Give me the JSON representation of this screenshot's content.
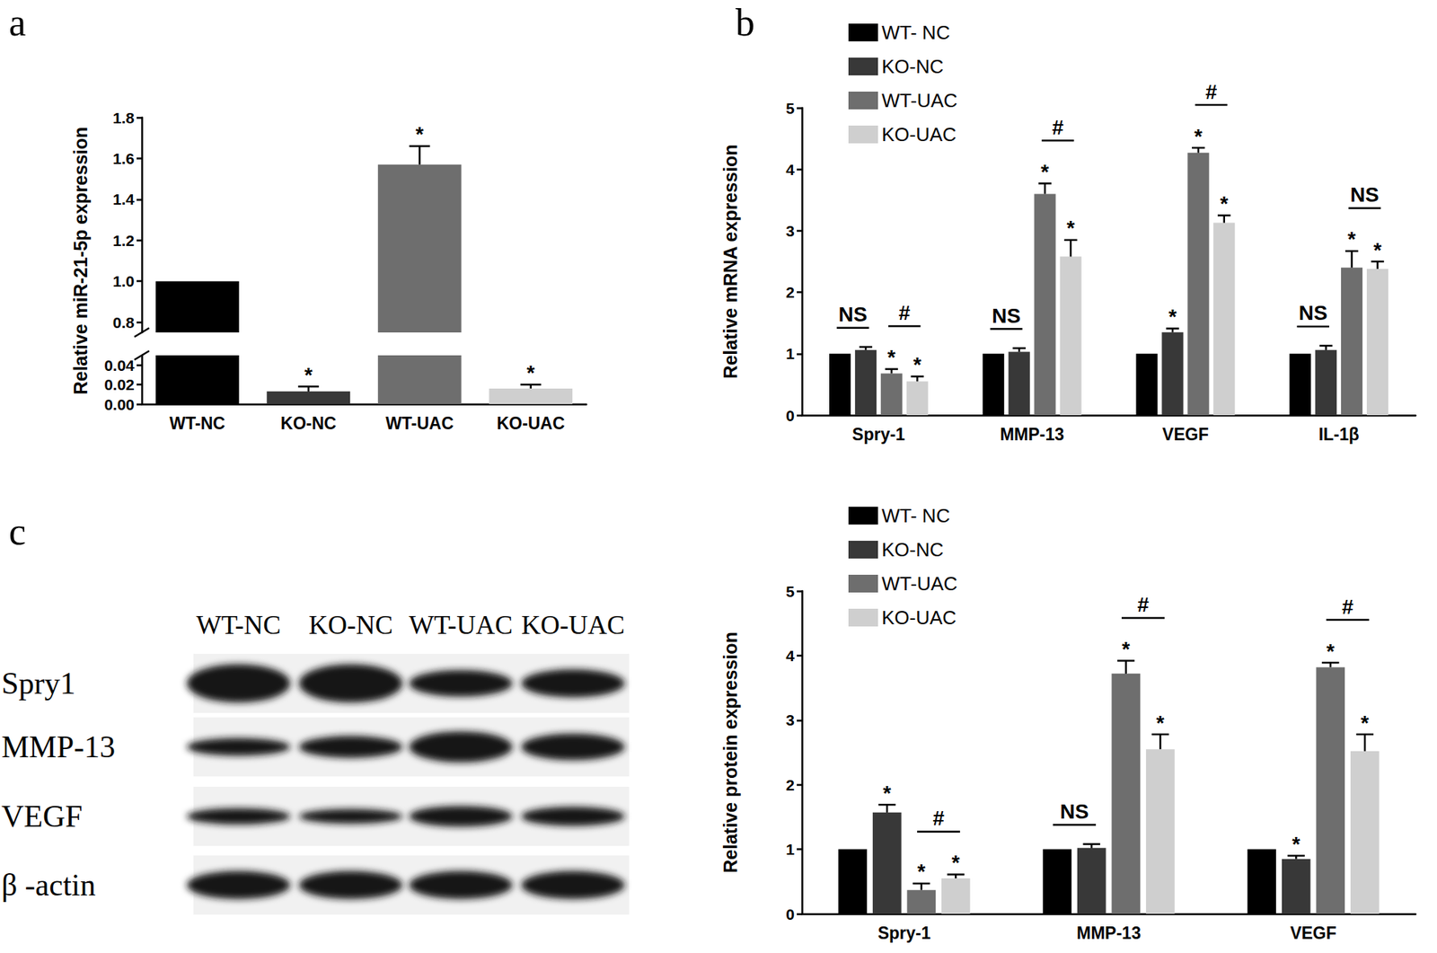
{
  "chart_data": [
    {
      "panel": "a",
      "type": "bar",
      "categories": [
        "WT-NC",
        "KO-NC",
        "WT-UAC",
        "KO-UAC"
      ],
      "values": [
        1,
        0.013,
        1.57,
        0.016
      ],
      "errors": [
        null,
        0.005,
        0.09,
        0.004
      ],
      "significance": [
        null,
        "*",
        "*",
        "*"
      ],
      "colors": [
        "#000000",
        "#383838",
        "#6e6e6e",
        "#cfcfcf"
      ],
      "y_label": "Relative miR-21-5p expression",
      "ylim": [
        0,
        1.8
      ],
      "axis_break": [
        0.05,
        0.75
      ],
      "yticks": [
        {
          "value": 0,
          "label": "0.00"
        },
        0.02,
        0.04,
        0.8,
        {
          "value": 1,
          "label": "1.0"
        },
        1.2,
        1.4,
        1.6,
        1.8
      ],
      "grid": false
    },
    {
      "panel": "b",
      "type": "bar",
      "categories": [
        "Spry-1",
        "MMP-13",
        "VEGF",
        "IL-1β"
      ],
      "y_label": "Relative mRNA expression",
      "ylim": [
        0,
        5
      ],
      "yticks": [
        0,
        1,
        2,
        3,
        4,
        5
      ],
      "grid": false,
      "legend": "upper left",
      "series": [
        {
          "name": "WT- NC",
          "color": "#000000",
          "values": [
            1,
            1,
            1,
            1
          ],
          "errors": [
            null,
            null,
            null,
            null
          ],
          "significance": [
            null,
            null,
            null,
            null
          ]
        },
        {
          "name": "KO-NC",
          "color": "#383838",
          "values": [
            1.06,
            1.03,
            1.35,
            1.06
          ],
          "errors": [
            0.05,
            0.06,
            0.06,
            0.07
          ],
          "significance": [
            null,
            null,
            "*",
            null
          ]
        },
        {
          "name": "WT-UAC",
          "color": "#6e6e6e",
          "values": [
            0.68,
            3.6,
            4.27,
            2.4
          ],
          "errors": [
            0.07,
            0.17,
            0.08,
            0.27
          ],
          "significance": [
            "*",
            "*",
            "*",
            "*"
          ]
        },
        {
          "name": "KO-UAC",
          "color": "#cfcfcf",
          "values": [
            0.55,
            2.58,
            3.13,
            2.38
          ],
          "errors": [
            0.08,
            0.27,
            0.12,
            0.12
          ],
          "significance": [
            "*",
            "*",
            "*",
            "*"
          ]
        }
      ],
      "comparisons": [
        {
          "category": "Spry-1",
          "series": [
            "WT- NC",
            "KO-NC"
          ],
          "text": "NS"
        },
        {
          "category": "Spry-1",
          "series": [
            "WT-UAC",
            "KO-UAC"
          ],
          "text": "#"
        },
        {
          "category": "MMP-13",
          "series": [
            "WT- NC",
            "KO-NC"
          ],
          "text": "NS"
        },
        {
          "category": "MMP-13",
          "series": [
            "WT-UAC",
            "KO-UAC"
          ],
          "text": "#"
        },
        {
          "category": "VEGF",
          "series": [
            "WT-UAC",
            "KO-UAC"
          ],
          "text": "#"
        },
        {
          "category": "IL-1β",
          "series": [
            "WT- NC",
            "KO-NC"
          ],
          "text": "NS"
        },
        {
          "category": "IL-1β",
          "series": [
            "WT-UAC",
            "KO-UAC"
          ],
          "text": "NS"
        }
      ]
    },
    {
      "type": "bar",
      "categories": [
        "Spry-1",
        "MMP-13",
        "VEGF"
      ],
      "y_label": "Relative protein expression",
      "ylim": [
        0,
        5
      ],
      "yticks": [
        0,
        1,
        2,
        3,
        4,
        5
      ],
      "grid": false,
      "legend": "upper left",
      "series": [
        {
          "name": "WT- NC",
          "color": "#000000",
          "values": [
            1,
            1,
            1
          ],
          "errors": [
            null,
            null,
            null
          ],
          "significance": [
            null,
            null,
            null
          ]
        },
        {
          "name": "KO-NC",
          "color": "#383838",
          "values": [
            1.57,
            1.02,
            0.85
          ],
          "errors": [
            0.12,
            0.06,
            0.05
          ],
          "significance": [
            "*",
            null,
            "*"
          ]
        },
        {
          "name": "WT-UAC",
          "color": "#6e6e6e",
          "values": [
            0.37,
            3.72,
            3.82
          ],
          "errors": [
            0.1,
            0.2,
            0.07
          ],
          "significance": [
            "*",
            "*",
            "*"
          ]
        },
        {
          "name": "KO-UAC",
          "color": "#cfcfcf",
          "values": [
            0.55,
            2.55,
            2.52
          ],
          "errors": [
            0.06,
            0.23,
            0.26
          ],
          "significance": [
            "*",
            "*",
            "*"
          ]
        }
      ],
      "comparisons": [
        {
          "category": "Spry-1",
          "series": [
            "WT-UAC",
            "KO-UAC"
          ],
          "text": "#"
        },
        {
          "category": "MMP-13",
          "series": [
            "WT- NC",
            "KO-NC"
          ],
          "text": "NS"
        },
        {
          "category": "MMP-13",
          "series": [
            "WT-UAC",
            "KO-UAC"
          ],
          "text": "#"
        },
        {
          "category": "VEGF",
          "series": [
            "WT-UAC",
            "KO-UAC"
          ],
          "text": "#"
        }
      ]
    }
  ],
  "blot": {
    "panel": "c",
    "lanes": [
      "WT-NC",
      "KO-NC",
      "WT-UAC",
      "KO-UAC"
    ],
    "rows": [
      "Spry1",
      "MMP-13",
      "VEGF",
      "β -actin"
    ]
  }
}
